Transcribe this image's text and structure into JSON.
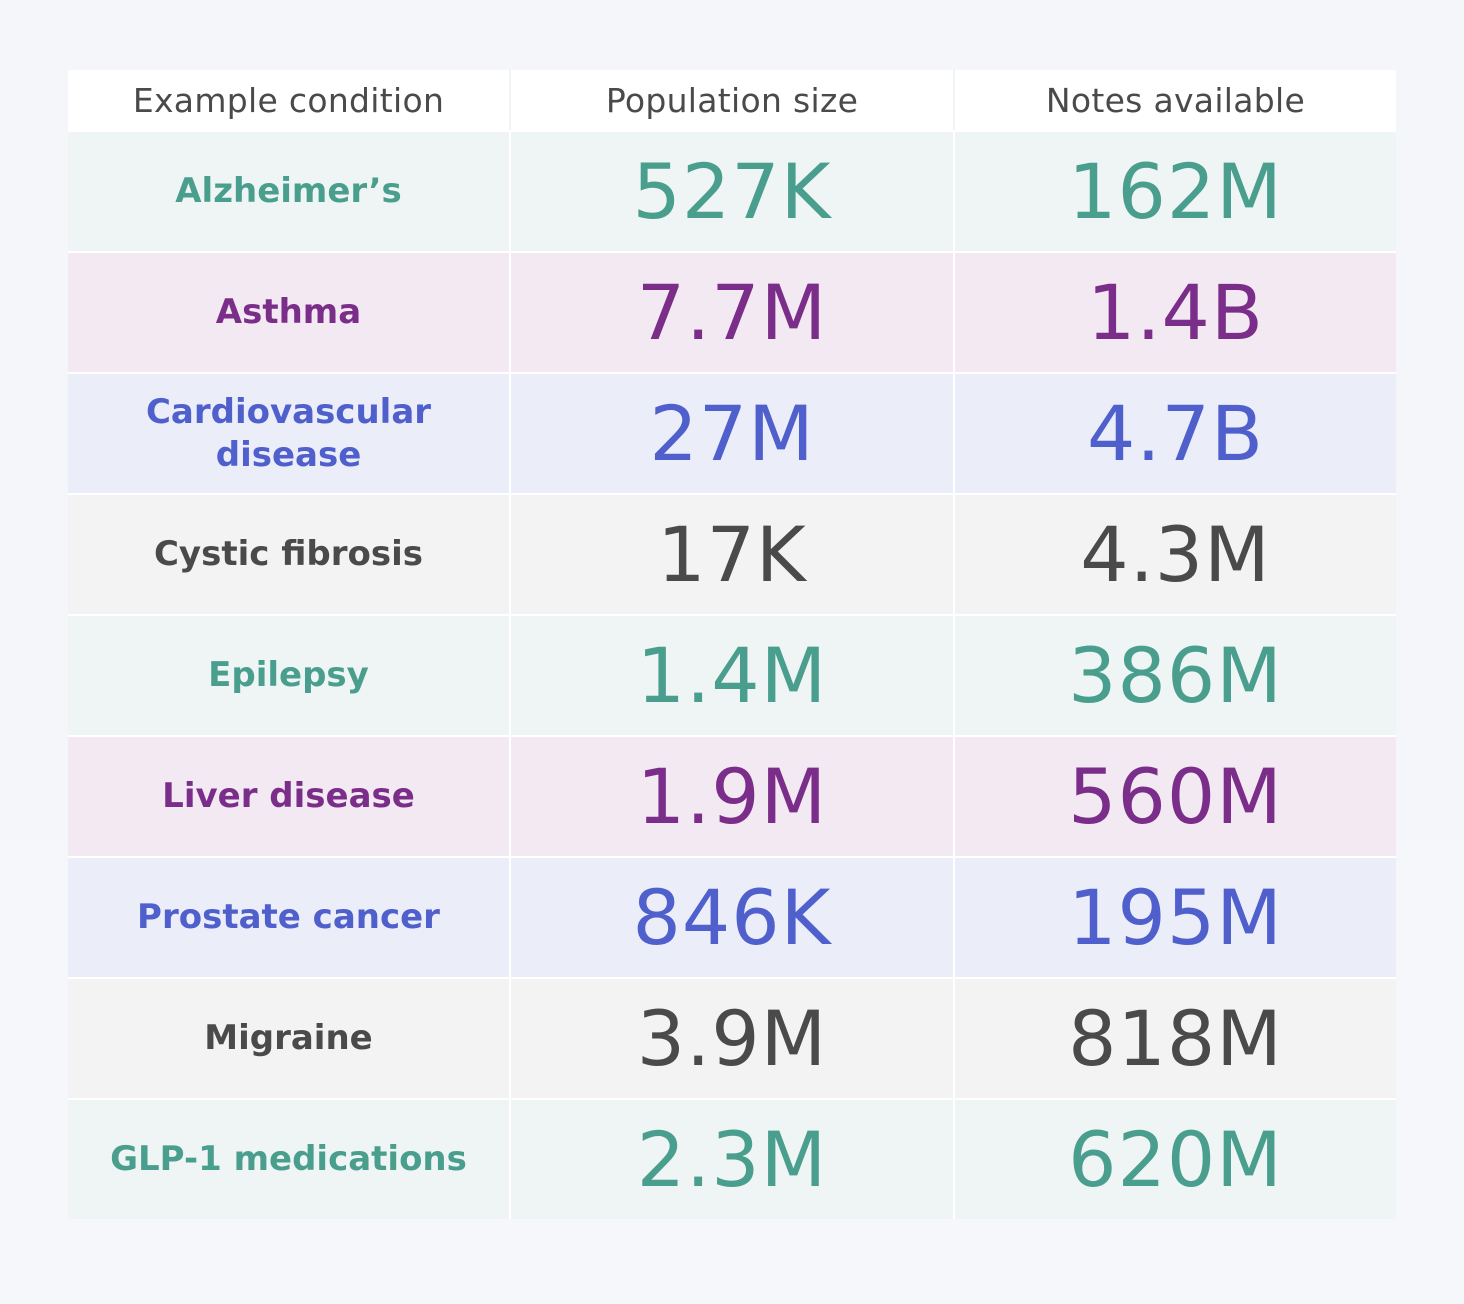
{
  "headers": {
    "condition": "Example condition",
    "population": "Population size",
    "notes": "Notes available"
  },
  "colors": {
    "teal": "#4a9e8e",
    "purple": "#7b2d8a",
    "blue": "#4f5fcc",
    "gray": "#4a4a4a",
    "teal_bg": "#eef5f4",
    "purple_bg": "#f2e9f2",
    "blue_bg": "#ebedf9",
    "gray_bg": "#f3f3f4"
  },
  "rows": [
    {
      "condition": "Alzheimer’s",
      "population": "527K",
      "notes": "162M",
      "theme": "teal"
    },
    {
      "condition": "Asthma",
      "population": "7.7M",
      "notes": "1.4B",
      "theme": "purple"
    },
    {
      "condition": "Cardiovascular disease",
      "population": "27M",
      "notes": "4.7B",
      "theme": "blue"
    },
    {
      "condition": "Cystic fibrosis",
      "population": "17K",
      "notes": "4.3M",
      "theme": "gray"
    },
    {
      "condition": "Epilepsy",
      "population": "1.4M",
      "notes": "386M",
      "theme": "teal"
    },
    {
      "condition": "Liver disease",
      "population": "1.9M",
      "notes": "560M",
      "theme": "purple"
    },
    {
      "condition": "Prostate cancer",
      "population": "846K",
      "notes": "195M",
      "theme": "blue"
    },
    {
      "condition": "Migraine",
      "population": "3.9M",
      "notes": "818M",
      "theme": "gray"
    },
    {
      "condition": "GLP-1 medications",
      "population": "2.3M",
      "notes": "620M",
      "theme": "teal"
    }
  ]
}
